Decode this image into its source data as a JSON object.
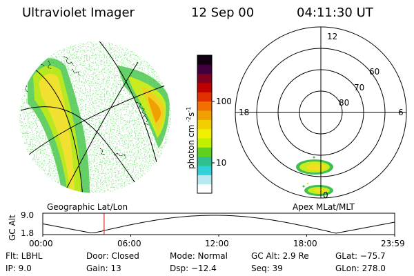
{
  "header": {
    "instrument": "Ultraviolet Imager",
    "date": "12 Sep 00",
    "time": "04:11:30 UT"
  },
  "colorbar": {
    "unit_label": "photon cm",
    "unit_exp1": "-2",
    "unit_s": "s",
    "unit_exp2": "-1",
    "tick_high": "100",
    "tick_low": "10",
    "colors": [
      "#ffffff",
      "#b8e8f0",
      "#30d0d8",
      "#30c090",
      "#60d020",
      "#c0f000",
      "#f0f000",
      "#f0d000",
      "#f0a000",
      "#f07000",
      "#e03000",
      "#c00000",
      "#800020",
      "#400040",
      "#100010"
    ]
  },
  "geo_panel": {
    "caption": "Geographic Lat/Lon"
  },
  "polar_plot": {
    "caption": "Apex MLat/MLT",
    "mlt_labels": {
      "top": "12",
      "left": "18",
      "right": "6",
      "bottom": "0"
    },
    "lat_labels": [
      "60",
      "70",
      "80"
    ]
  },
  "timeline": {
    "y_label": "GC Alt",
    "y_ticks": [
      "9.0",
      "1.8"
    ],
    "x_ticks": [
      "00:00",
      "06:00",
      "12:00",
      "18:00",
      "23:59"
    ],
    "marker_time": "04:11",
    "marker_color": "#c00000"
  },
  "info": {
    "flt": "Flt: LBHL",
    "ip": "IP: 9.0",
    "door": "Door: Closed",
    "gain": "Gain: 13",
    "mode": "Mode: Normal",
    "dsp": "Dsp: −12.4",
    "gcalt": "GC Alt: 2.9 Re",
    "seq": "Seq: 39",
    "glat": "GLat: −75.7",
    "glon": "GLon: 278.0"
  }
}
